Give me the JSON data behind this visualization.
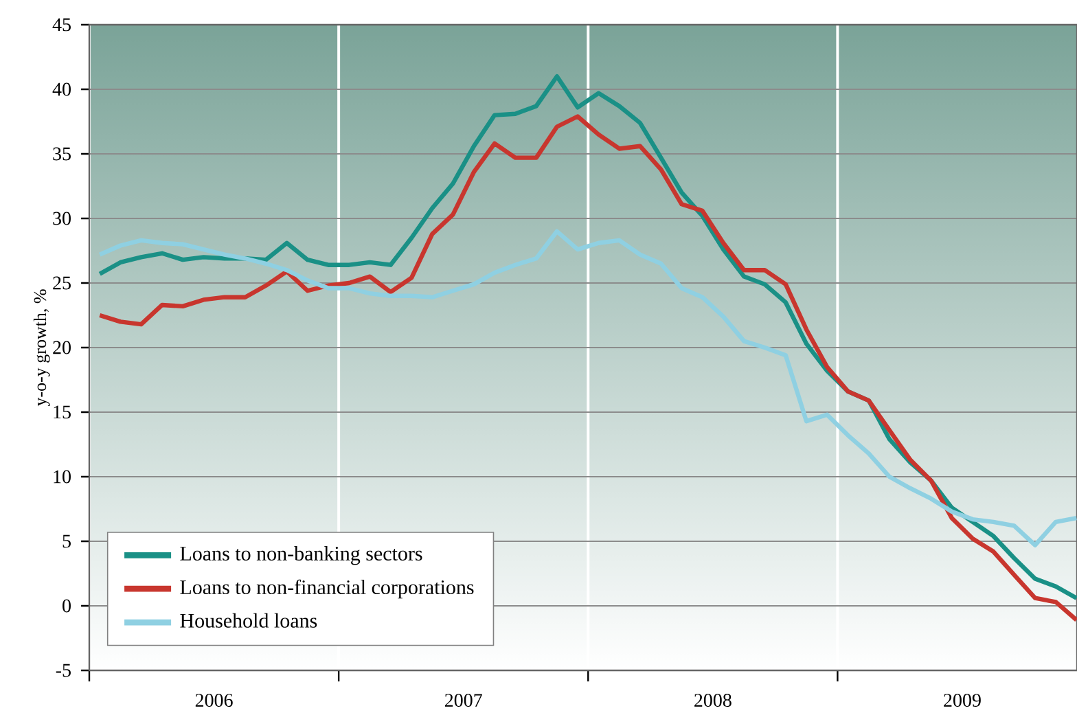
{
  "chart_data": {
    "type": "line",
    "ylabel": "y-o-y growth, %",
    "x": [
      2006.042,
      2006.125,
      2006.208,
      2006.292,
      2006.375,
      2006.458,
      2006.542,
      2006.625,
      2006.708,
      2006.792,
      2006.875,
      2006.958,
      2007.042,
      2007.125,
      2007.208,
      2007.292,
      2007.375,
      2007.458,
      2007.542,
      2007.625,
      2007.708,
      2007.792,
      2007.875,
      2007.958,
      2008.042,
      2008.125,
      2008.208,
      2008.292,
      2008.375,
      2008.458,
      2008.542,
      2008.625,
      2008.708,
      2008.792,
      2008.875,
      2008.958,
      2009.042,
      2009.125,
      2009.208,
      2009.292,
      2009.375,
      2009.458,
      2009.542,
      2009.625,
      2009.708,
      2009.792,
      2009.875,
      2009.958
    ],
    "series": [
      {
        "name": "Loans to non-banking sectors",
        "color": "#1a9086",
        "values": [
          25.7,
          26.6,
          27.0,
          27.3,
          26.8,
          27.0,
          26.9,
          26.9,
          26.8,
          28.1,
          26.8,
          26.4,
          26.4,
          26.6,
          26.4,
          28.5,
          30.8,
          32.7,
          35.6,
          38.0,
          38.1,
          38.7,
          41.0,
          38.6,
          39.7,
          38.7,
          37.4,
          34.7,
          32.0,
          30.2,
          27.6,
          25.5,
          24.9,
          23.5,
          20.3,
          18.2,
          16.6,
          15.9,
          12.9,
          11.1,
          9.7,
          7.6,
          6.5,
          5.4,
          3.7,
          2.1,
          1.5,
          0.6
        ]
      },
      {
        "name": "Loans to non-financial corporations",
        "color": "#c8362e",
        "values": [
          22.5,
          22.0,
          21.8,
          23.3,
          23.2,
          23.7,
          23.9,
          23.9,
          24.8,
          25.9,
          24.4,
          24.8,
          25.0,
          25.5,
          24.3,
          25.4,
          28.8,
          30.3,
          33.6,
          35.8,
          34.7,
          34.7,
          37.1,
          37.9,
          36.5,
          35.4,
          35.6,
          33.8,
          31.1,
          30.6,
          28.1,
          26.0,
          26.0,
          24.9,
          21.4,
          18.5,
          16.6,
          15.9,
          13.6,
          11.3,
          9.7,
          6.8,
          5.2,
          4.2,
          2.4,
          0.6,
          0.3,
          -1.1
        ]
      },
      {
        "name": "Household loans",
        "color": "#8fd0e2",
        "values": [
          27.2,
          27.9,
          28.3,
          28.1,
          28.0,
          27.6,
          27.2,
          26.9,
          26.5,
          26.0,
          25.2,
          24.6,
          24.6,
          24.2,
          24.0,
          24.0,
          23.9,
          24.4,
          24.9,
          25.8,
          26.4,
          26.9,
          29.0,
          27.6,
          28.1,
          28.3,
          27.2,
          26.5,
          24.6,
          23.9,
          22.4,
          20.5,
          20.0,
          19.4,
          14.3,
          14.8,
          13.2,
          11.8,
          10.0,
          9.1,
          8.3,
          7.3,
          6.7,
          6.5,
          6.2,
          4.7,
          6.5,
          6.8
        ]
      }
    ],
    "xlim": [
      2006,
      2009.96
    ],
    "xticks": [
      {
        "value": 2006,
        "label": null
      },
      {
        "value": 2006.5,
        "label": "2006"
      },
      {
        "value": 2007,
        "label": null
      },
      {
        "value": 2007.5,
        "label": "2007"
      },
      {
        "value": 2008,
        "label": null
      },
      {
        "value": 2008.5,
        "label": "2008"
      },
      {
        "value": 2009,
        "label": null
      },
      {
        "value": 2009.5,
        "label": "2009"
      }
    ],
    "ylim": [
      -5,
      45
    ],
    "yticks": [
      -5,
      0,
      5,
      10,
      15,
      20,
      25,
      30,
      35,
      40,
      45
    ],
    "grid": true,
    "legend": "bottom left"
  }
}
